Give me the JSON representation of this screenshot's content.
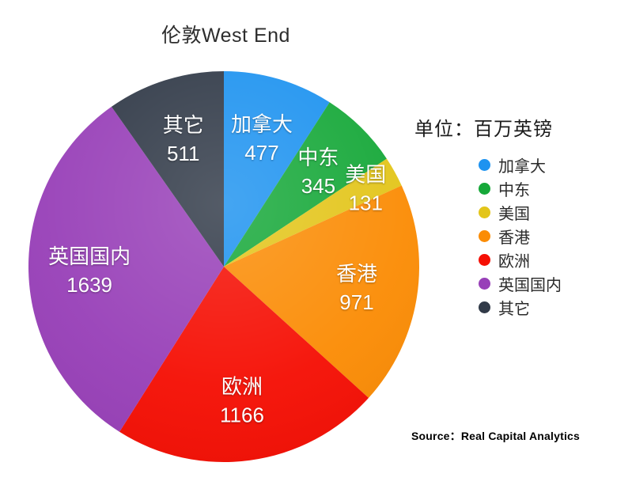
{
  "title": "伦敦West End",
  "unit_label": "单位：百万英镑",
  "source_label": "Source：Real Capital Analytics",
  "chart_data": {
    "type": "pie",
    "title": "伦敦West End",
    "unit": "百万英镑",
    "total": 5240,
    "start_angle_deg": 0,
    "direction": "clockwise",
    "legend_position": "right",
    "slice_label_style": "name and value in white inside each slice",
    "categories": [
      "加拿大",
      "中东",
      "美国",
      "香港",
      "欧洲",
      "英国国内",
      "其它"
    ],
    "values": [
      477,
      345,
      131,
      971,
      1166,
      1639,
      511
    ],
    "slices": [
      {
        "label": "加拿大",
        "value": 477,
        "color": "#1E93F0"
      },
      {
        "label": "中东",
        "value": 345,
        "color": "#16A839"
      },
      {
        "label": "美国",
        "value": 131,
        "color": "#E3C51A"
      },
      {
        "label": "香港",
        "value": 971,
        "color": "#FB8C05"
      },
      {
        "label": "欧洲",
        "value": 1166,
        "color": "#F50F04"
      },
      {
        "label": "英国国内",
        "value": 1639,
        "color": "#9840B8"
      },
      {
        "label": "其它",
        "value": 511,
        "color": "#313A48"
      }
    ]
  }
}
